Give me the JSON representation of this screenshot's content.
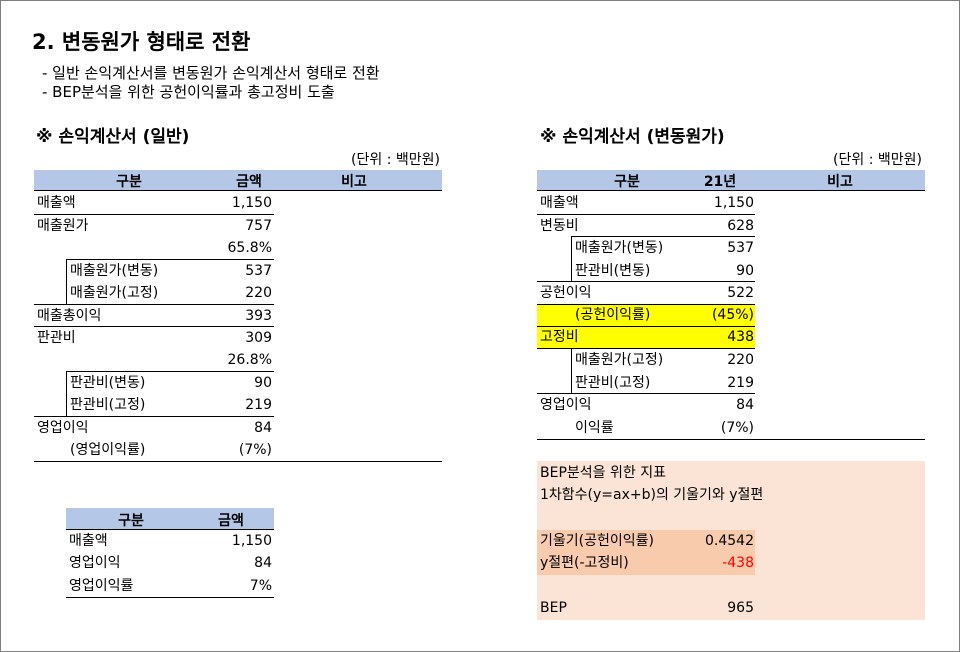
{
  "title": "2. 변동원가 형태로 전환",
  "bullets": [
    "- 일반 손익계산서를 변동원가 손익계산서 형태로 전환",
    "- BEP분석을 위한 공헌이익률과 총고정비 도출"
  ],
  "left": {
    "section": "※ 손익계산서 (일반)",
    "unit": "(단위 : 백만원)",
    "headers": [
      "구분",
      "금액",
      "비고"
    ],
    "rows": [
      {
        "label": "매출액",
        "value": "1,150"
      },
      {
        "label": "매출원가",
        "value": "757"
      },
      {
        "label": "",
        "value": "65.8%"
      },
      {
        "label": "매출원가(변동)",
        "value": "537"
      },
      {
        "label": "매출원가(고정)",
        "value": "220"
      },
      {
        "label": "매출총이익",
        "value": "393"
      },
      {
        "label": "판관비",
        "value": "309"
      },
      {
        "label": "",
        "value": "26.8%"
      },
      {
        "label": "판관비(변동)",
        "value": "90"
      },
      {
        "label": "판관비(고정)",
        "value": "219"
      },
      {
        "label": "영업이익",
        "value": "84"
      },
      {
        "label": "(영업이익률)",
        "value": "(7%)"
      }
    ]
  },
  "small": {
    "headers": [
      "구분",
      "금액"
    ],
    "rows": [
      {
        "label": "매출액",
        "value": "1,150"
      },
      {
        "label": "영업이익",
        "value": "84"
      },
      {
        "label": "영업이익률",
        "value": "7%"
      }
    ]
  },
  "right": {
    "section": "※ 손익계산서 (변동원가)",
    "unit": "(단위 : 백만원)",
    "headers": [
      "구분",
      "21년",
      "비고"
    ],
    "rows": [
      {
        "label": "매출액",
        "value": "1,150"
      },
      {
        "label": "변동비",
        "value": "628"
      },
      {
        "label": "매출원가(변동)",
        "value": "537"
      },
      {
        "label": "판관비(변동)",
        "value": "90"
      },
      {
        "label": "공헌이익",
        "value": "522"
      },
      {
        "label": "(공헌이익률)",
        "value": "(45%)"
      },
      {
        "label": "고정비",
        "value": "438"
      },
      {
        "label": "매출원가(고정)",
        "value": "220"
      },
      {
        "label": "판관비(고정)",
        "value": "219"
      },
      {
        "label": "영업이익",
        "value": "84"
      },
      {
        "label": "이익률",
        "value": "(7%)"
      }
    ]
  },
  "bep": {
    "line1": "BEP분석을 위한 지표",
    "line2": "1차함수(y=ax+b)의 기울기와 y절편",
    "slope_label": "기울기(공헌이익률)",
    "slope_value": "0.4542",
    "intercept_label": "y절편(-고정비)",
    "intercept_value": "-438",
    "bep_label": "BEP",
    "bep_value": "965"
  },
  "colors": {
    "header_blue": "#b4c7e7",
    "highlight": "#ffff00",
    "peach": "#fbe4d6",
    "peach_dark": "#f8cbad",
    "negative": "#ff0000"
  }
}
